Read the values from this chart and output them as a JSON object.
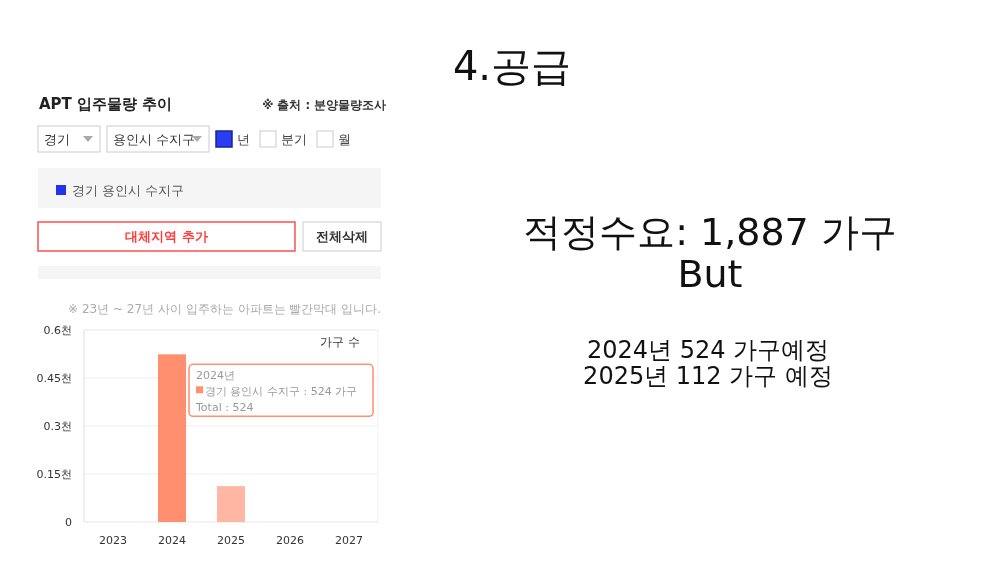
{
  "chart_data": {
    "type": "bar",
    "title": "4.공급",
    "subtitle": "APT 입주물량 추이",
    "ylabel": "가구 수",
    "categories": [
      "2023",
      "2024",
      "2025",
      "2026",
      "2027"
    ],
    "series": [
      {
        "name": "경기 용인시 수지구",
        "color": "#2233ee",
        "colors": [
          null,
          "#ff8f6e",
          "#ffb6a3",
          null,
          null
        ],
        "values": [
          null,
          0.524,
          0.112,
          null,
          null
        ]
      }
    ],
    "ylim": [
      0,
      0.6
    ],
    "yticks": [
      0,
      {
        "value": 0.15,
        "label": "0.15천"
      },
      {
        "value": 0.3,
        "label": "0.3천"
      },
      {
        "value": 0.45,
        "label": "0.45천"
      },
      {
        "value": 0.6,
        "label": "0.6천"
      }
    ],
    "grid": "y",
    "legend": "top",
    "annotations": [
      "※ 출처 : 분양물량조사",
      "경기",
      "용인시 수지구",
      "년",
      "분기",
      "월",
      "대체지역 추가",
      "전체삭제",
      "※ 23년 ~ 27년 사이 입주하는 아파트는 빨간막대 입니다.",
      {
        "text": "2024년\n경기 용인시 수지구 : 524 가구\nTotal : 524",
        "x": "2024",
        "y": 0.524
      },
      "적정수요: 1,887 가구",
      "But",
      "2024년 524 가구예정",
      "2025년 112 가구 예정"
    ]
  }
}
